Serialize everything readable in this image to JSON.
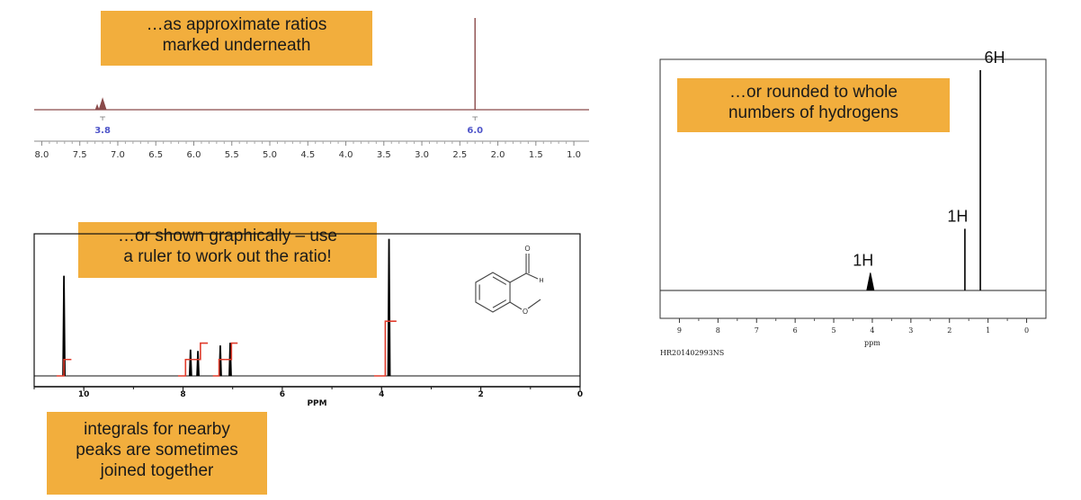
{
  "callouts": {
    "top": "…as approximate ratios\nmarked underneath",
    "graphical": "…or shown graphically – use\na ruler to work out the ratio!",
    "rounded": "…or rounded to whole\nnumbers of hydrogens",
    "joined": "integrals for nearby\npeaks are sometimes\njoined together"
  },
  "colors": {
    "callout_bg": "#f2ae3d",
    "spectrum1": "#8a4a4a",
    "integral_line": "#e03c2c",
    "integral_label": "#4f55c9"
  },
  "chart_data": [
    {
      "type": "line",
      "xlabel": "",
      "ylabel": "",
      "xlim": [
        8.1,
        0.8
      ],
      "x_ticks": [
        "8.0",
        "7.5",
        "7.0",
        "6.5",
        "6.0",
        "5.5",
        "5.0",
        "4.5",
        "4.0",
        "3.5",
        "3.0",
        "2.5",
        "2.0",
        "1.5",
        "1.0"
      ],
      "peaks": [
        {
          "ppm": 7.2,
          "height": 0.14,
          "integral": "3.8"
        },
        {
          "ppm": 2.3,
          "height": 1.0,
          "integral": "6.0"
        }
      ]
    },
    {
      "type": "line",
      "xlabel": "PPM",
      "xlim": [
        11,
        0
      ],
      "x_ticks": [
        "10",
        "8",
        "6",
        "4",
        "2",
        "0"
      ],
      "peaks": [
        {
          "ppm": 10.4,
          "height": 0.73
        },
        {
          "ppm": 7.85,
          "height": 0.19
        },
        {
          "ppm": 7.7,
          "height": 0.18
        },
        {
          "ppm": 7.25,
          "height": 0.22
        },
        {
          "ppm": 7.05,
          "height": 0.24
        },
        {
          "ppm": 3.85,
          "height": 1.0
        }
      ],
      "integrals": [
        {
          "from": 10.55,
          "to": 10.25,
          "low": 0.0,
          "high": 0.12
        },
        {
          "from": 8.1,
          "to": 7.8,
          "low": 0.0,
          "high": 0.12
        },
        {
          "from": 7.8,
          "to": 7.5,
          "low": 0.12,
          "high": 0.24
        },
        {
          "from": 7.4,
          "to": 7.15,
          "low": 0.0,
          "high": 0.12
        },
        {
          "from": 7.15,
          "to": 6.9,
          "low": 0.12,
          "high": 0.24
        },
        {
          "from": 4.15,
          "to": 3.7,
          "low": 0.0,
          "high": 0.4
        }
      ],
      "structure": {
        "atom_labels": [
          "O",
          "H",
          "O"
        ]
      }
    },
    {
      "type": "line",
      "xlabel": "ppm",
      "xlim": [
        9.5,
        -0.5
      ],
      "x_ticks": [
        "9",
        "8",
        "7",
        "6",
        "5",
        "4",
        "3",
        "2",
        "1",
        "0"
      ],
      "footer_code": "HR201402993NS",
      "peaks": [
        {
          "ppm": 4.05,
          "height": 0.08,
          "label": "1H"
        },
        {
          "ppm": 1.6,
          "height": 0.28,
          "label": "1H"
        },
        {
          "ppm": 1.2,
          "height": 1.0,
          "label": "6H"
        }
      ]
    }
  ]
}
